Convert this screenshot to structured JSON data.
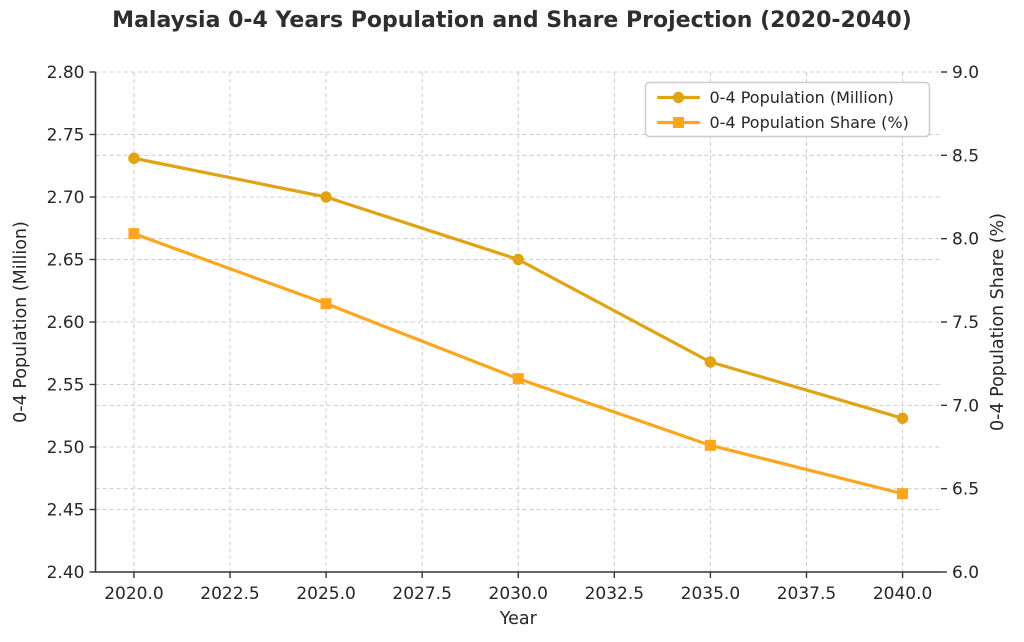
{
  "figure": {
    "background": "#ffffff",
    "title_color": "#2e2e2e",
    "spine_color": "#333333",
    "tick_label_color": "#262626",
    "grid_color": "#cccccc"
  },
  "chart_data": {
    "type": "line",
    "title": "Malaysia 0-4 Years Population and Share Projection (2020-2040)",
    "xlabel": "Year",
    "x": [
      2020,
      2025,
      2030,
      2035,
      2040
    ],
    "x_ticks": {
      "values": [
        2020,
        2022.5,
        2025,
        2027.5,
        2030,
        2032.5,
        2035,
        2037.5,
        2040
      ],
      "labels": [
        "2020.0",
        "2022.5",
        "2025.0",
        "2027.5",
        "2030.0",
        "2032.5",
        "2035.0",
        "2037.5",
        "2040.0"
      ]
    },
    "left_axis": {
      "label": "0-4 Population (Million)",
      "min": 2.4,
      "max": 2.8,
      "tick_values": [
        2.4,
        2.45,
        2.5,
        2.55,
        2.6,
        2.65,
        2.7,
        2.75,
        2.8
      ],
      "tick_labels": [
        "2.40",
        "2.45",
        "2.50",
        "2.55",
        "2.60",
        "2.65",
        "2.70",
        "2.75",
        "2.80"
      ]
    },
    "right_axis": {
      "label": "0-4 Population Share (%)",
      "min": 6.0,
      "max": 9.0,
      "tick_values": [
        6.0,
        6.5,
        7.0,
        7.5,
        8.0,
        8.5,
        9.0
      ],
      "tick_labels": [
        "6.0",
        "6.5",
        "7.0",
        "7.5",
        "8.0",
        "8.5",
        "9.0"
      ]
    },
    "series": [
      {
        "name": "0-4 Population (Million)",
        "axis": "left",
        "marker": "circle",
        "color": "#E0A312",
        "values": [
          2.731,
          2.7,
          2.65,
          2.568,
          2.523
        ]
      },
      {
        "name": "0-4 Population Share (%)",
        "axis": "right",
        "marker": "square",
        "color": "#FFA51E",
        "values": [
          8.03,
          7.61,
          7.16,
          6.76,
          6.47
        ]
      }
    ],
    "legend": {
      "position": "upper-right",
      "entries": [
        "0-4 Population (Million)",
        "0-4 Population Share (%)"
      ]
    },
    "grid": true,
    "grid_style": "dashed"
  }
}
